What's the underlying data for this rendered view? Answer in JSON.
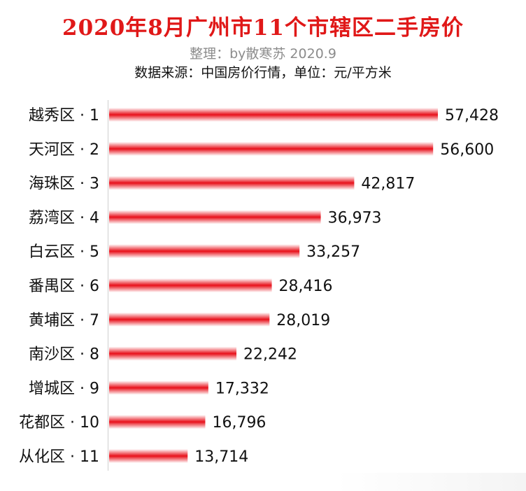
{
  "chart_data": {
    "type": "bar",
    "orientation": "horizontal",
    "title": "2020年8月广州市11个市辖区二手房价",
    "subtitle": "整理：by散寒苏 2020.9",
    "source": "数据来源：中国房价行情，单位：元/平方米",
    "categories": [
      "越秀区 · 1",
      "天河区 · 2",
      "海珠区 · 3",
      "荔湾区 · 4",
      "白云区 · 5",
      "番禺区 · 6",
      "黄埔区 · 7",
      "南沙区 · 8",
      "增城区 · 9",
      "花都区 · 10",
      "从化区 · 11"
    ],
    "values": [
      57428,
      56600,
      42817,
      36973,
      33257,
      28416,
      28019,
      22242,
      17332,
      16796,
      13714
    ],
    "value_labels": [
      "57,428",
      "56,600",
      "42,817",
      "36,973",
      "33,257",
      "28,416",
      "28,019",
      "22,242",
      "17,332",
      "16,796",
      "13,714"
    ],
    "xlim": [
      0,
      60000
    ],
    "bar_color": "#e8101a",
    "grid": false,
    "legend": "none"
  }
}
